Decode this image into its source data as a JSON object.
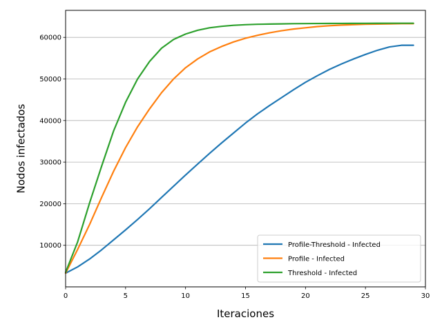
{
  "chart_data": {
    "type": "line",
    "title": "",
    "xlabel": "Iteraciones",
    "ylabel": "Nodos infectados",
    "xlim": [
      0,
      30
    ],
    "ylim": [
      0,
      66500
    ],
    "xticks": [
      0,
      5,
      10,
      15,
      20,
      25,
      30
    ],
    "yticks": [
      10000,
      20000,
      30000,
      40000,
      50000,
      60000
    ],
    "grid": "y-major",
    "legend_position": "lower-right",
    "x": [
      0,
      1,
      2,
      3,
      4,
      5,
      6,
      7,
      8,
      9,
      10,
      11,
      12,
      13,
      14,
      15,
      16,
      17,
      18,
      19,
      20,
      21,
      22,
      23,
      24,
      25,
      26,
      27,
      28,
      29
    ],
    "series": [
      {
        "name": "Profile-Threshold - Infected",
        "color": "#1f77b4",
        "values": [
          3300,
          4800,
          6700,
          8900,
          11300,
          13700,
          16200,
          18800,
          21500,
          24200,
          26900,
          29500,
          32100,
          34600,
          37000,
          39400,
          41600,
          43600,
          45500,
          47400,
          49200,
          50800,
          52300,
          53600,
          54800,
          55900,
          56900,
          57700,
          58100,
          58100
        ]
      },
      {
        "name": "Profile - Infected",
        "color": "#ff7f0e",
        "values": [
          3300,
          9000,
          15000,
          21500,
          27800,
          33500,
          38500,
          42800,
          46700,
          50000,
          52700,
          54800,
          56500,
          57800,
          58900,
          59800,
          60500,
          61100,
          61600,
          62000,
          62300,
          62600,
          62800,
          62950,
          63050,
          63150,
          63200,
          63250,
          63300,
          63300
        ]
      },
      {
        "name": "Threshold - Infected",
        "color": "#2ca02c",
        "values": [
          3500,
          10800,
          20200,
          29000,
          37500,
          44400,
          50000,
          54200,
          57400,
          59500,
          60800,
          61700,
          62300,
          62650,
          62900,
          63050,
          63150,
          63200,
          63250,
          63300,
          63320,
          63340,
          63350,
          63360,
          63370,
          63380,
          63390,
          63400,
          63400,
          63400
        ]
      }
    ]
  }
}
